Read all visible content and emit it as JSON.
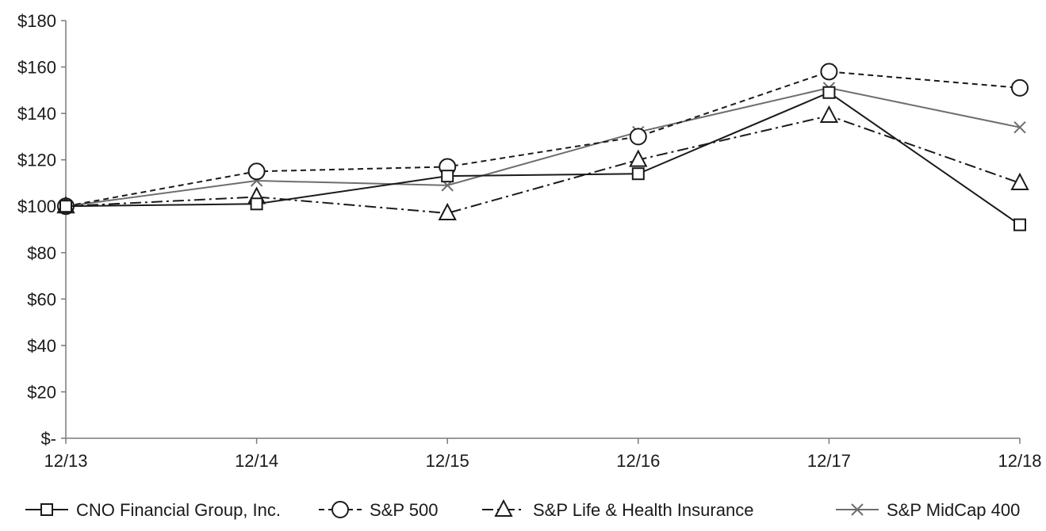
{
  "chart_data": {
    "type": "line",
    "title": "",
    "xlabel": "",
    "ylabel": "",
    "categories": [
      "12/13",
      "12/14",
      "12/15",
      "12/16",
      "12/17",
      "12/18"
    ],
    "y_ticks": [
      "$-",
      "$20",
      "$40",
      "$60",
      "$80",
      "$100",
      "$120",
      "$140",
      "$160",
      "$180"
    ],
    "ylim": [
      0,
      180
    ],
    "grid": false,
    "legend_position": "bottom",
    "series": [
      {
        "name": "CNO Financial Group, Inc.",
        "values": [
          100,
          101,
          113,
          114,
          149,
          92
        ],
        "marker": "square",
        "line_style": "solid",
        "color": "#1a1a1a"
      },
      {
        "name": "S&P 500",
        "values": [
          100,
          115,
          117,
          130,
          158,
          151
        ],
        "marker": "circle",
        "line_style": "dashed",
        "color": "#1a1a1a"
      },
      {
        "name": "S&P Life & Health Insurance",
        "values": [
          100,
          104,
          97,
          120,
          139,
          110
        ],
        "marker": "triangle",
        "line_style": "dashdot",
        "color": "#1a1a1a"
      },
      {
        "name": "S&P MidCap 400",
        "values": [
          100,
          111,
          109,
          132,
          151,
          134
        ],
        "marker": "x",
        "line_style": "solid",
        "color": "#6e6e6e"
      }
    ]
  }
}
